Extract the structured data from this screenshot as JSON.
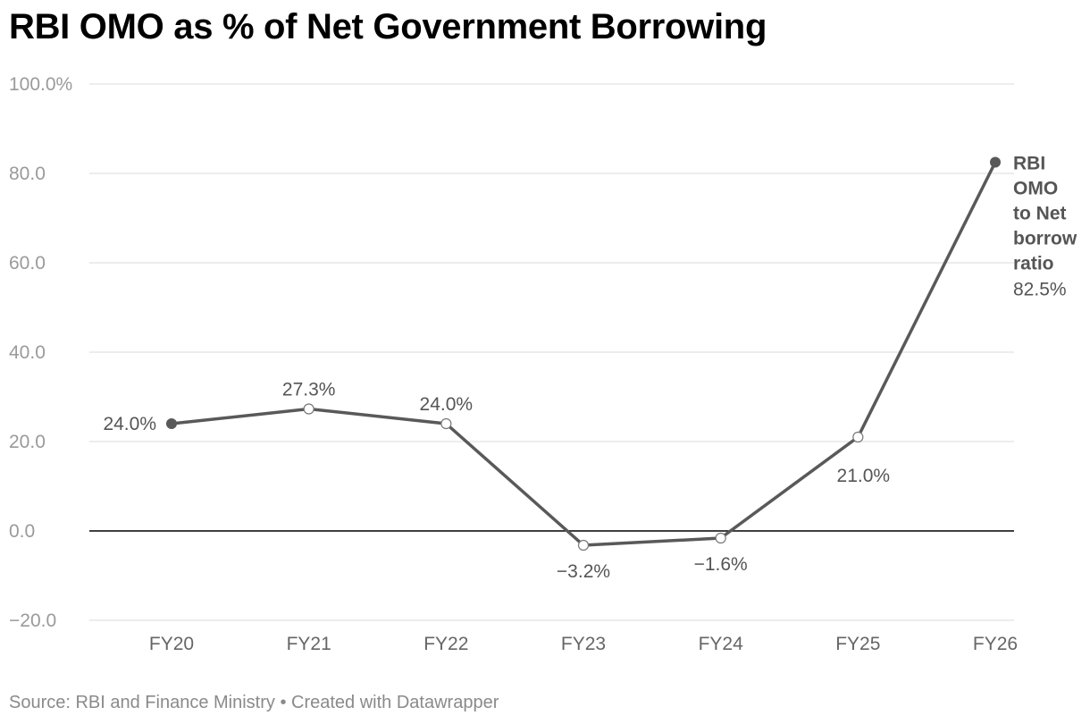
{
  "title": "RBI OMO as % of Net Government Borrowing",
  "chart_data": {
    "type": "line",
    "title": "RBI OMO as % of Net Government Borrowing",
    "categories": [
      "FY20",
      "FY21",
      "FY22",
      "FY23",
      "FY24",
      "FY25",
      "FY26"
    ],
    "series": [
      {
        "name": "RBI OMO to Net borrow ratio",
        "values": [
          24.0,
          27.3,
          24.0,
          -3.2,
          -1.6,
          21.0,
          82.5
        ],
        "labels": [
          "24.0%",
          "27.3%",
          "24.0%",
          "−3.2%",
          "−1.6%",
          "21.0%",
          "82.5%"
        ]
      }
    ],
    "series_label_lines": [
      "RBI",
      "OMO",
      "to Net",
      "borrow",
      "ratio"
    ],
    "end_value_label": "82.5%",
    "yticks": [
      -20,
      0,
      20,
      40,
      60,
      80,
      100
    ],
    "ytick_labels": [
      "−20.0",
      "0.0",
      "20.0",
      "40.0",
      "60.0",
      "80.0",
      "100.0%"
    ],
    "ylim": [
      -20,
      100
    ],
    "xlabel": "",
    "ylabel": "",
    "grid": true,
    "line_color": "#595959"
  },
  "footer": "Source: RBI and Finance Ministry • Created with Datawrapper"
}
